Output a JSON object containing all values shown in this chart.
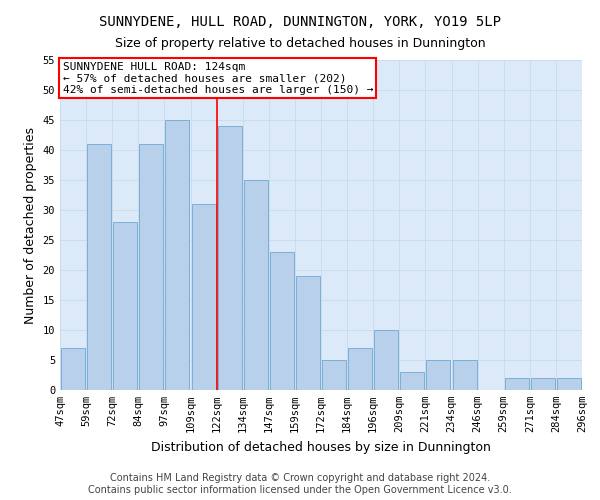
{
  "title": "SUNNYDENE, HULL ROAD, DUNNINGTON, YORK, YO19 5LP",
  "subtitle": "Size of property relative to detached houses in Dunnington",
  "xlabel": "Distribution of detached houses by size in Dunnington",
  "ylabel": "Number of detached properties",
  "bar_values": [
    7,
    41,
    28,
    41,
    45,
    31,
    44,
    35,
    23,
    19,
    5,
    7,
    10,
    3,
    5,
    5,
    0,
    2,
    2,
    2
  ],
  "bar_labels": [
    "47sqm",
    "59sqm",
    "72sqm",
    "84sqm",
    "97sqm",
    "109sqm",
    "122sqm",
    "134sqm",
    "147sqm",
    "159sqm",
    "172sqm",
    "184sqm",
    "196sqm",
    "209sqm",
    "221sqm",
    "234sqm",
    "246sqm",
    "259sqm",
    "271sqm",
    "284sqm",
    "296sqm"
  ],
  "bar_color": "#b8d0ea",
  "bar_edge_color": "#6fa8d4",
  "grid_color": "#c8daea",
  "background_color": "#dce9f8",
  "annotation_text": "SUNNYDENE HULL ROAD: 124sqm\n← 57% of detached houses are smaller (202)\n42% of semi-detached houses are larger (150) →",
  "annotation_box_color": "white",
  "annotation_box_edge_color": "red",
  "vline_color": "red",
  "vline_x": 5.5,
  "ylim": [
    0,
    55
  ],
  "yticks": [
    0,
    5,
    10,
    15,
    20,
    25,
    30,
    35,
    40,
    45,
    50,
    55
  ],
  "footer_line1": "Contains HM Land Registry data © Crown copyright and database right 2024.",
  "footer_line2": "Contains public sector information licensed under the Open Government Licence v3.0.",
  "title_fontsize": 10,
  "subtitle_fontsize": 9,
  "xlabel_fontsize": 9,
  "ylabel_fontsize": 9,
  "tick_fontsize": 7.5,
  "annotation_fontsize": 8,
  "footer_fontsize": 7
}
